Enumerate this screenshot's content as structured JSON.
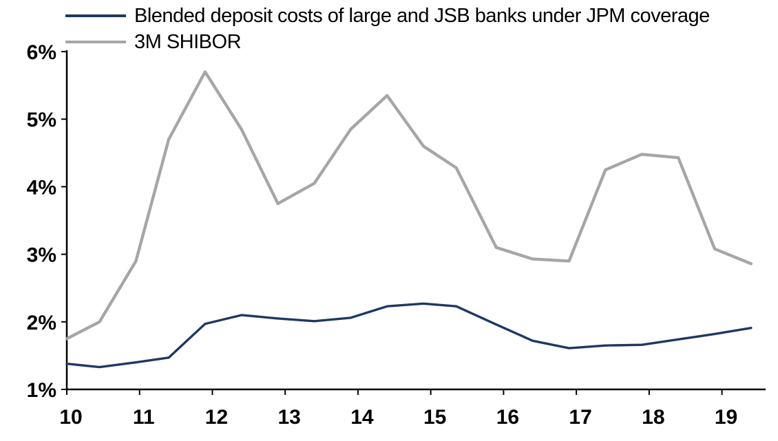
{
  "chart_data": {
    "type": "line",
    "x": [
      10.0,
      10.45,
      10.95,
      11.4,
      11.9,
      12.4,
      12.9,
      13.4,
      13.9,
      14.4,
      14.9,
      15.35,
      15.9,
      16.4,
      16.9,
      17.4,
      17.9,
      18.4,
      18.9,
      19.4
    ],
    "series": [
      {
        "name": "Blended deposit costs of large and JSB banks under JPM coverage",
        "color": "#1F3864",
        "values": [
          1.38,
          1.33,
          1.4,
          1.47,
          1.97,
          2.1,
          2.05,
          2.01,
          2.06,
          2.23,
          2.27,
          2.23,
          1.96,
          1.72,
          1.61,
          1.65,
          1.66,
          1.74,
          1.82,
          1.91
        ]
      },
      {
        "name": "3M SHIBOR",
        "color": "#A6A6A6",
        "values": [
          1.75,
          2.0,
          2.9,
          4.7,
          5.7,
          4.85,
          3.75,
          4.05,
          4.85,
          5.35,
          4.6,
          4.28,
          3.1,
          2.93,
          2.9,
          4.25,
          4.48,
          4.43,
          3.08,
          2.86
        ]
      }
    ],
    "xlim": [
      10,
      19.6
    ],
    "ylim": [
      1,
      6
    ],
    "xticks": [
      {
        "value": 10,
        "label": "10"
      },
      {
        "value": 11,
        "label": "11"
      },
      {
        "value": 12,
        "label": "12"
      },
      {
        "value": 13,
        "label": "13"
      },
      {
        "value": 14,
        "label": "14"
      },
      {
        "value": 15,
        "label": "15"
      },
      {
        "value": 16,
        "label": "16"
      },
      {
        "value": 17,
        "label": "17"
      },
      {
        "value": 18,
        "label": "18"
      },
      {
        "value": 19,
        "label": "19"
      }
    ],
    "yticks": [
      {
        "value": 6,
        "label": "6%"
      },
      {
        "value": 5,
        "label": "5%"
      },
      {
        "value": 4,
        "label": "4%"
      },
      {
        "value": 3,
        "label": "3%"
      },
      {
        "value": 2,
        "label": "2%"
      },
      {
        "value": 1,
        "label": "1%"
      }
    ],
    "grid": false,
    "legend_position": "top-left",
    "axis_color": "#000000"
  }
}
